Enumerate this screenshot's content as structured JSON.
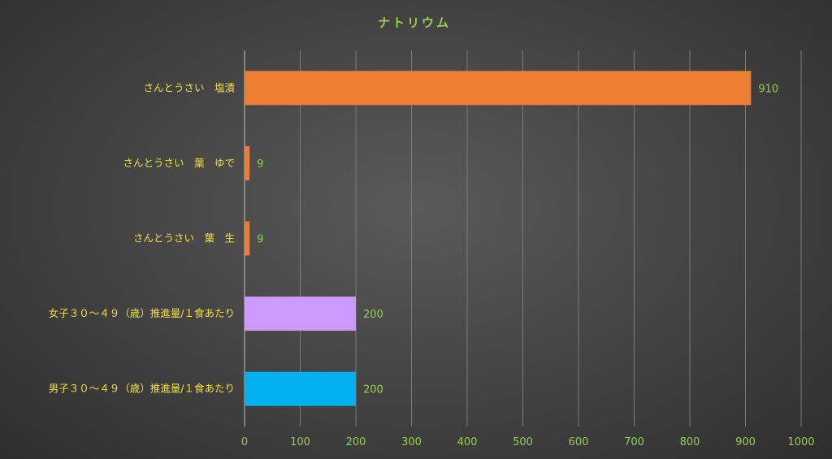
{
  "chart_data": {
    "type": "bar",
    "orientation": "horizontal",
    "title": "ナトリウム",
    "xlabel": "",
    "ylabel": "",
    "xlim": [
      0,
      1000
    ],
    "ticks": [
      0,
      100,
      200,
      300,
      400,
      500,
      600,
      700,
      800,
      900,
      1000
    ],
    "grid": true,
    "categories": [
      "さんとうさい　塩漬",
      "さんとうさい　葉　ゆで",
      "さんとうさい　葉　生",
      "女子３０～４９（歳）推進量/１食あたり",
      "男子３０～４９（歳）推進量/１食あたり"
    ],
    "values": [
      910,
      9,
      9,
      200,
      200
    ],
    "colors": [
      "#ed7d31",
      "#ed7d31",
      "#ed7d31",
      "#cc99ff",
      "#00b0f0"
    ],
    "data_labels": [
      "910",
      "9",
      "9",
      "200",
      "200"
    ]
  }
}
